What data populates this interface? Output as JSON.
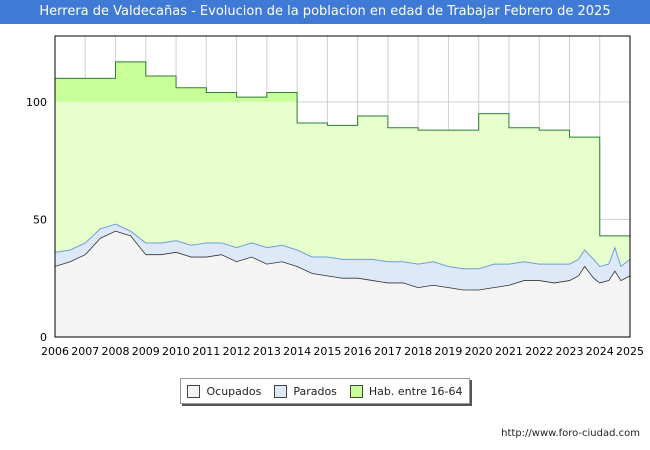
{
  "colors": {
    "title_bg": "#3f7bd6",
    "hab_fill": "#e6ffcc",
    "hab_top": "#c8ff99",
    "hab_line": "#2e7d32",
    "parados_fill": "#dde9f8",
    "parados_line": "#6f9fd8",
    "ocupados_fill": "#f4f4f4",
    "ocupados_line": "#333333"
  },
  "chart_data": {
    "type": "area",
    "title": "Herrera de Valdecañas - Evolucion de la poblacion en edad de Trabajar Febrero de 2025",
    "x_ticks": [
      "2006",
      "2007",
      "2008",
      "2009",
      "2010",
      "2011",
      "2012",
      "2013",
      "2014",
      "2015",
      "2016",
      "2017",
      "2018",
      "2019",
      "2020",
      "2021",
      "2022",
      "2023",
      "2024",
      "2025"
    ],
    "xlim": [
      2006,
      2025
    ],
    "y_ticks": [
      "0",
      "50",
      "100"
    ],
    "ylim": [
      0,
      128
    ],
    "grid": true,
    "legend_position": "bottom-center",
    "series": [
      {
        "name": "Hab. entre 16-64",
        "kind": "step",
        "x": [
          2006,
          2007,
          2008,
          2009,
          2010,
          2011,
          2012,
          2013,
          2014,
          2015,
          2016,
          2017,
          2018,
          2019,
          2020,
          2021,
          2022,
          2023,
          2024
        ],
        "values": [
          110,
          110,
          117,
          111,
          106,
          104,
          102,
          104,
          91,
          90,
          94,
          89,
          88,
          88,
          95,
          89,
          88,
          85,
          43
        ]
      },
      {
        "name": "Parados",
        "kind": "line",
        "x": [
          2006,
          2006.5,
          2007,
          2007.5,
          2008,
          2008.5,
          2009,
          2009.5,
          2010,
          2010.5,
          2011,
          2011.5,
          2012,
          2012.5,
          2013,
          2013.5,
          2014,
          2014.5,
          2015,
          2015.5,
          2016,
          2016.5,
          2017,
          2017.5,
          2018,
          2018.5,
          2019,
          2019.5,
          2020,
          2020.5,
          2021,
          2021.5,
          2022,
          2022.5,
          2023,
          2023.3,
          2023.5,
          2023.8,
          2024,
          2024.3,
          2024.5,
          2024.7,
          2025
        ],
        "values": [
          36,
          37,
          40,
          46,
          48,
          45,
          40,
          40,
          41,
          39,
          40,
          40,
          38,
          40,
          38,
          39,
          37,
          34,
          34,
          33,
          33,
          33,
          32,
          32,
          31,
          32,
          30,
          29,
          29,
          31,
          31,
          32,
          31,
          31,
          31,
          33,
          37,
          33,
          30,
          31,
          38,
          30,
          33
        ]
      },
      {
        "name": "Ocupados",
        "kind": "line",
        "x": [
          2006,
          2006.5,
          2007,
          2007.5,
          2008,
          2008.5,
          2009,
          2009.5,
          2010,
          2010.5,
          2011,
          2011.5,
          2012,
          2012.5,
          2013,
          2013.5,
          2014,
          2014.5,
          2015,
          2015.5,
          2016,
          2016.5,
          2017,
          2017.5,
          2018,
          2018.5,
          2019,
          2019.5,
          2020,
          2020.5,
          2021,
          2021.5,
          2022,
          2022.5,
          2023,
          2023.3,
          2023.5,
          2023.8,
          2024,
          2024.3,
          2024.5,
          2024.7,
          2025
        ],
        "values": [
          30,
          32,
          35,
          42,
          45,
          43,
          35,
          35,
          36,
          34,
          34,
          35,
          32,
          34,
          31,
          32,
          30,
          27,
          26,
          25,
          25,
          24,
          23,
          23,
          21,
          22,
          21,
          20,
          20,
          21,
          22,
          24,
          24,
          23,
          24,
          26,
          30,
          25,
          23,
          24,
          28,
          24,
          26
        ]
      }
    ]
  },
  "legend": {
    "ocupados": "Ocupados",
    "parados": "Parados",
    "hab": "Hab. entre 16-64"
  },
  "footer": {
    "source_url": "http://www.foro-ciudad.com"
  }
}
